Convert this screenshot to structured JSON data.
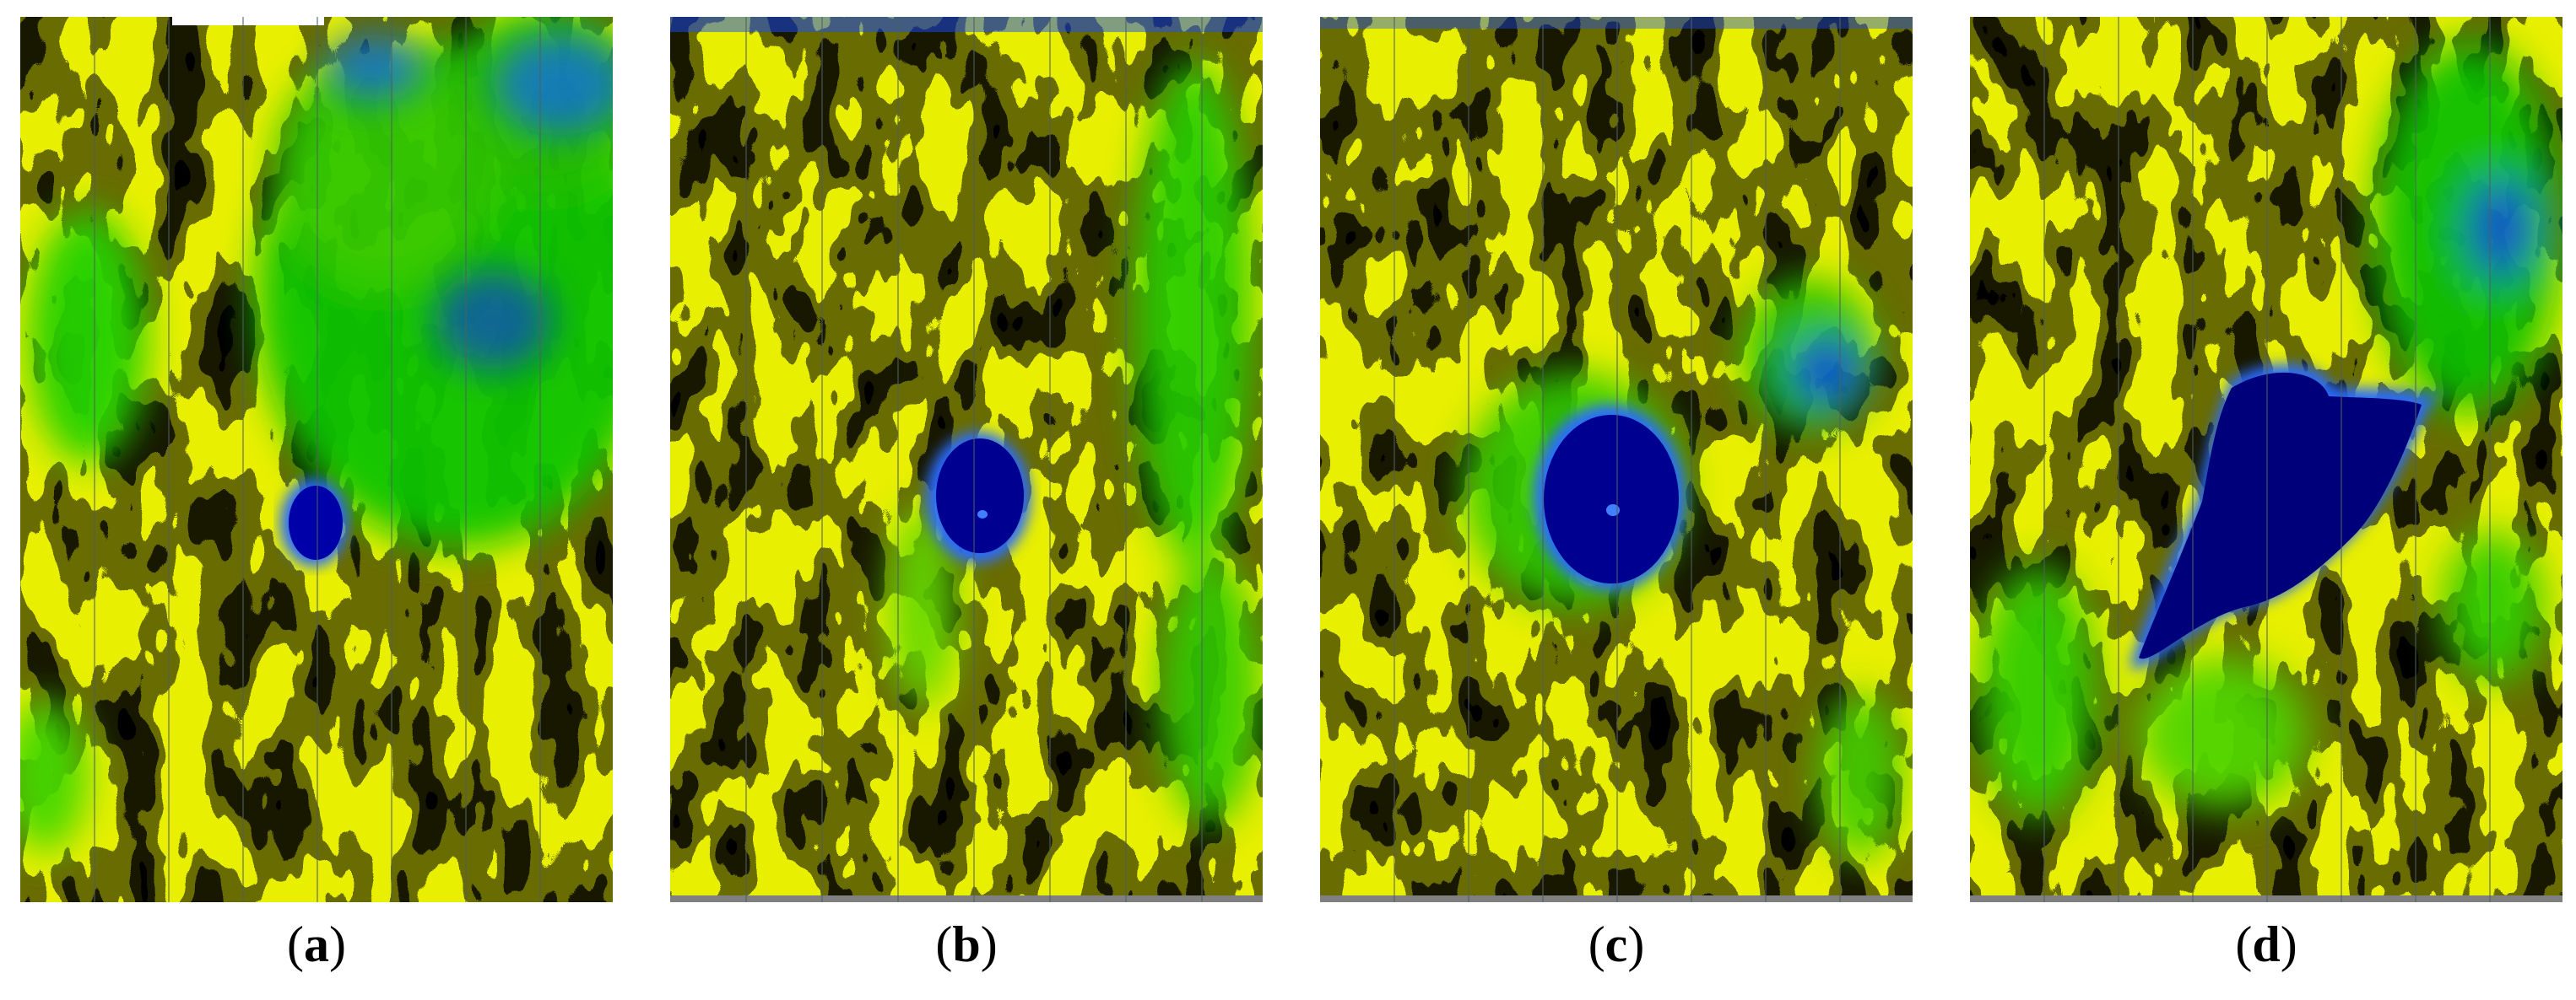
{
  "panels": [
    {
      "label": "a",
      "colormap": [
        "#0000a0",
        "#1a5fff",
        "#00d400",
        "#7fe000",
        "#ffff00",
        "#ffa000",
        "#ff2000"
      ]
    },
    {
      "label": "b",
      "colormap": [
        "#0000a0",
        "#1a5fff",
        "#00d400",
        "#7fe000",
        "#ffff00",
        "#ffa000",
        "#ff2000"
      ]
    },
    {
      "label": "c",
      "colormap": [
        "#0000a0",
        "#1a5fff",
        "#00d400",
        "#7fe000",
        "#ffff00",
        "#ffa000",
        "#ff2000"
      ]
    },
    {
      "label": "d",
      "colormap": [
        "#0000a0",
        "#1a5fff",
        "#00d400",
        "#7fe000",
        "#ffff00",
        "#ffa000",
        "#ff2000"
      ]
    }
  ]
}
